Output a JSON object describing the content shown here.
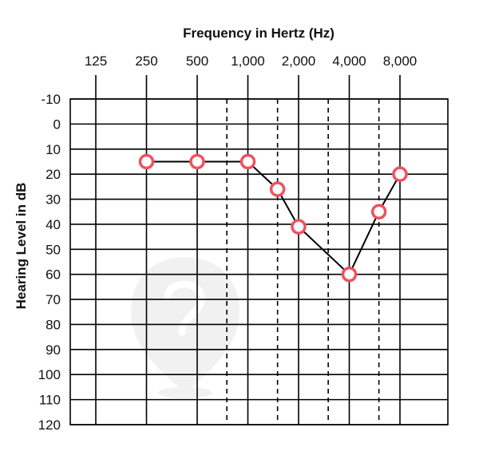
{
  "chart_data": {
    "type": "line",
    "title": "Frequency in Hertz (Hz)",
    "xlabel": "Frequency in Hertz (Hz)",
    "ylabel": "Hearing Level in dB",
    "x_scale": "log2-octave",
    "x_ticks": [
      {
        "hz": 125,
        "label": "125"
      },
      {
        "hz": 250,
        "label": "250"
      },
      {
        "hz": 500,
        "label": "500"
      },
      {
        "hz": 1000,
        "label": "1,000"
      },
      {
        "hz": 2000,
        "label": "2,000"
      },
      {
        "hz": 4000,
        "label": "4,000"
      },
      {
        "hz": 8000,
        "label": "8,000"
      }
    ],
    "x_half_octaves_hz": [
      750,
      1500,
      3000,
      6000
    ],
    "y_ticks": [
      -10,
      0,
      10,
      20,
      30,
      40,
      50,
      60,
      70,
      80,
      90,
      100,
      110,
      120
    ],
    "ylim": [
      -10,
      120
    ],
    "y_inverted": true,
    "grid": true,
    "series": [
      {
        "marker": "open-circle",
        "x": [
          250,
          500,
          1000,
          1500,
          2000,
          4000,
          6000,
          8000
        ],
        "y": [
          15,
          15,
          15,
          26,
          41,
          60,
          35,
          20
        ]
      }
    ],
    "colors": {
      "marker": "#f0505f",
      "line": "#000000",
      "grid": "#000000",
      "watermark": "#efefef"
    }
  }
}
